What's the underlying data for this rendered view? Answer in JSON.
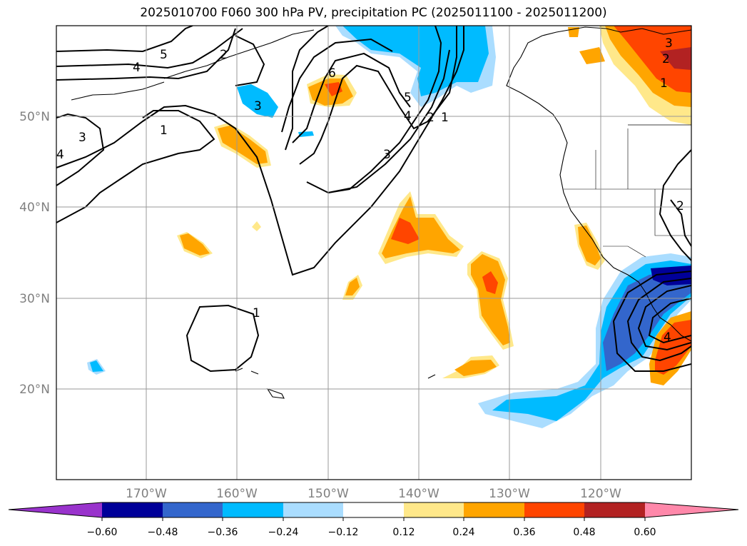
{
  "title": "2025010700 F060 300 hPa PV, precipitation PC (2025011100 - 2025011200)",
  "map": {
    "lon_ticks": [
      "170°W",
      "160°W",
      "150°W",
      "140°W",
      "130°W",
      "120°W"
    ],
    "lat_ticks": [
      "50°N",
      "40°N",
      "30°N",
      "20°N"
    ],
    "contour_labels": [
      "5",
      "4",
      "2",
      "3",
      "1",
      "4",
      "6",
      "3",
      "5",
      "4",
      "2",
      "1",
      "3",
      "1",
      "2",
      "3",
      "1",
      "2",
      "4"
    ]
  },
  "colorbar": {
    "ticks": [
      "−0.60",
      "−0.48",
      "−0.36",
      "−0.24",
      "−0.12",
      "0.12",
      "0.24",
      "0.36",
      "0.48",
      "0.60"
    ],
    "colors": [
      "#9933cc",
      "#000099",
      "#3366cc",
      "#00bbff",
      "#aaddff",
      "#ffffff",
      "#ffe88a",
      "#ffa500",
      "#ff4500",
      "#b22222",
      "#ff88aa"
    ]
  }
}
